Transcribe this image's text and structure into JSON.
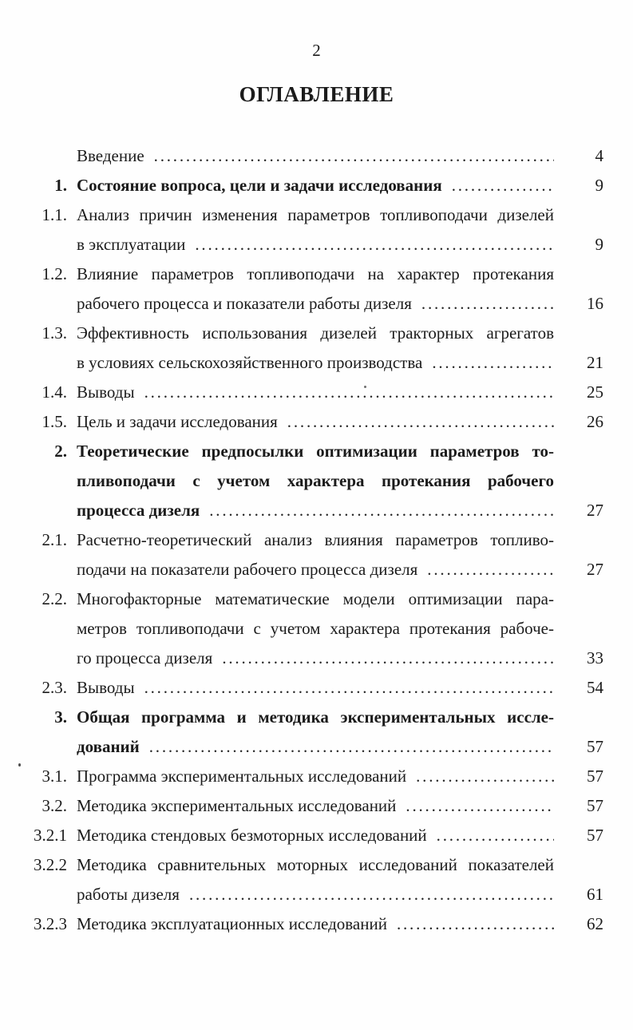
{
  "page": {
    "number": "2"
  },
  "toc": {
    "title": "ОГЛАВЛЕНИЕ",
    "leader": "..............................................................................................................................",
    "rows": [
      {
        "num": "",
        "text": "Введение",
        "bold": false,
        "justify": false,
        "leader": true,
        "page": "4"
      },
      {
        "num": "1.",
        "text": "Состояние вопроса, цели и задачи исследования",
        "bold": true,
        "justify": false,
        "leader": true,
        "page": "9"
      },
      {
        "num": "1.1.",
        "text": "Анализ причин изменения параметров топливоподачи дизелей",
        "bold": false,
        "justify": true,
        "leader": false,
        "page": ""
      },
      {
        "num": "",
        "text": "в эксплуатации",
        "bold": false,
        "justify": false,
        "leader": true,
        "page": "9"
      },
      {
        "num": "1.2.",
        "text": "Влияние параметров топливоподачи на характер протекания",
        "bold": false,
        "justify": true,
        "leader": false,
        "page": ""
      },
      {
        "num": "",
        "text": "рабочего процесса и показатели работы дизеля",
        "bold": false,
        "justify": false,
        "leader": true,
        "page": "16"
      },
      {
        "num": "1.3.",
        "text": "Эффективность использования дизелей тракторных агрегатов",
        "bold": false,
        "justify": true,
        "leader": false,
        "page": ""
      },
      {
        "num": "",
        "text": "в условиях сельскохозяйственного производства",
        "bold": false,
        "justify": false,
        "leader": true,
        "page": "21"
      },
      {
        "num": "1.4.",
        "text": "Выводы",
        "bold": false,
        "justify": false,
        "leader": true,
        "page": "25"
      },
      {
        "num": "1.5.",
        "text": "Цель и задачи исследования",
        "bold": false,
        "justify": false,
        "leader": true,
        "page": "26"
      },
      {
        "num": "2.",
        "text": "Теоретические предпосылки оптимизации параметров то-",
        "bold": true,
        "justify": true,
        "leader": false,
        "page": ""
      },
      {
        "num": "",
        "text": "пливоподачи с учетом характера протекания рабочего",
        "bold": true,
        "justify": true,
        "leader": false,
        "page": ""
      },
      {
        "num": "",
        "text": "процесса дизеля",
        "bold": true,
        "justify": false,
        "leader": true,
        "page": "27"
      },
      {
        "num": "2.1.",
        "text": "Расчетно-теоретический анализ влияния параметров топливо-",
        "bold": false,
        "justify": true,
        "leader": false,
        "page": ""
      },
      {
        "num": "",
        "text": "подачи на показатели рабочего процесса дизеля",
        "bold": false,
        "justify": false,
        "leader": true,
        "page": "27"
      },
      {
        "num": "2.2.",
        "text": "Многофакторные математические модели оптимизации пара-",
        "bold": false,
        "justify": true,
        "leader": false,
        "page": ""
      },
      {
        "num": "",
        "text": "метров топливоподачи с учетом характера протекания рабоче-",
        "bold": false,
        "justify": true,
        "leader": false,
        "page": ""
      },
      {
        "num": "",
        "text": "го процесса дизеля",
        "bold": false,
        "justify": false,
        "leader": true,
        "page": "33"
      },
      {
        "num": "2.3.",
        "text": "Выводы",
        "bold": false,
        "justify": false,
        "leader": true,
        "page": "54"
      },
      {
        "num": "3.",
        "text": "Общая программа и методика экспериментальных иссле-",
        "bold": true,
        "justify": true,
        "leader": false,
        "page": ""
      },
      {
        "num": "",
        "text": "дований",
        "bold": true,
        "justify": false,
        "leader": true,
        "page": "57"
      },
      {
        "num": "3.1.",
        "text": "Программа экспериментальных исследований",
        "bold": false,
        "justify": false,
        "leader": true,
        "page": "57"
      },
      {
        "num": "3.2.",
        "text": "Методика экспериментальных исследований",
        "bold": false,
        "justify": false,
        "leader": true,
        "page": "57"
      },
      {
        "num": "3.2.1",
        "text": "Методика стендовых безмоторных исследований",
        "bold": false,
        "justify": false,
        "leader": true,
        "page": "57"
      },
      {
        "num": "3.2.2",
        "text": "Методика сравнительных моторных исследований показателей",
        "bold": false,
        "justify": true,
        "leader": false,
        "page": ""
      },
      {
        "num": "",
        "text": "работы дизеля",
        "bold": false,
        "justify": false,
        "leader": true,
        "page": "61"
      },
      {
        "num": "3.2.3",
        "text": "Методика эксплуатационных исследований",
        "bold": false,
        "justify": false,
        "leader": true,
        "page": "62"
      }
    ]
  }
}
